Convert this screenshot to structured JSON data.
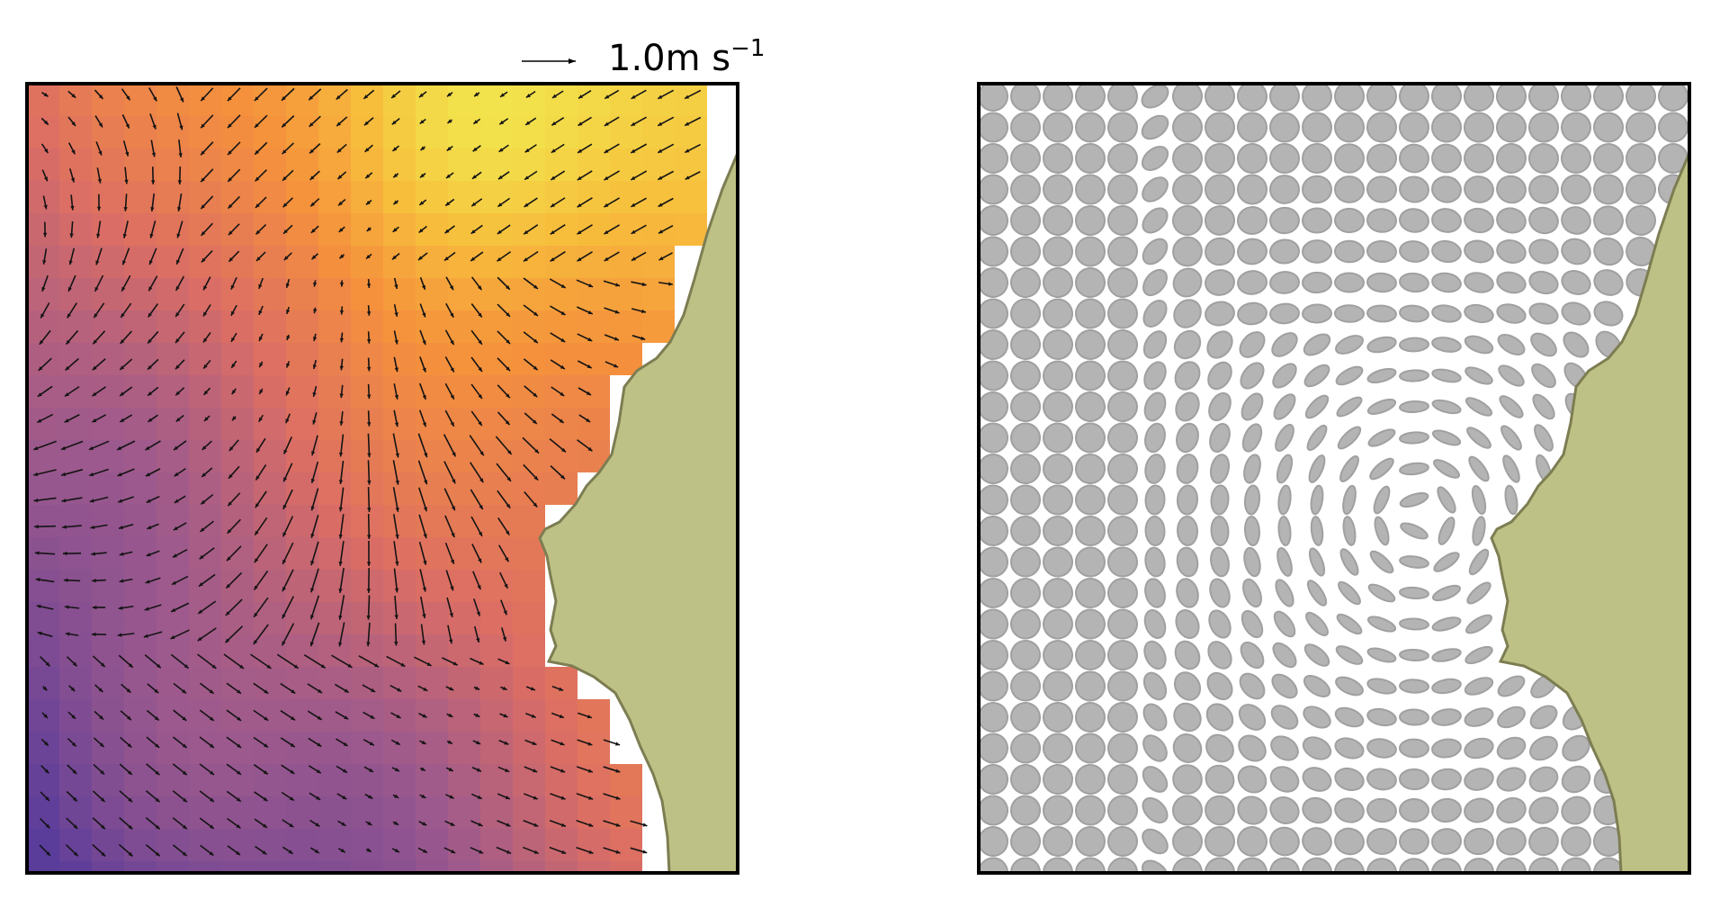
{
  "scale_key": {
    "label": "1.0m s",
    "exponent": "−1"
  },
  "colors": {
    "land_fill": "#bec185",
    "land_edge": "#7d7d52",
    "frame": "#000000",
    "ellipse_fill": "#b4b4b4",
    "ellipse_edge": "#a0a0a0",
    "arrow": "#141414"
  },
  "colormap": [
    "#5a3c9b",
    "#9e5a8c",
    "#dc6e64",
    "#f5913c",
    "#f7bd3c",
    "#f2e24b"
  ],
  "panels": [
    {
      "name": "velocity-field-panel",
      "kind": "velocity-field"
    },
    {
      "name": "strain-ellipse-panel",
      "kind": "strain-ellipses"
    }
  ]
}
